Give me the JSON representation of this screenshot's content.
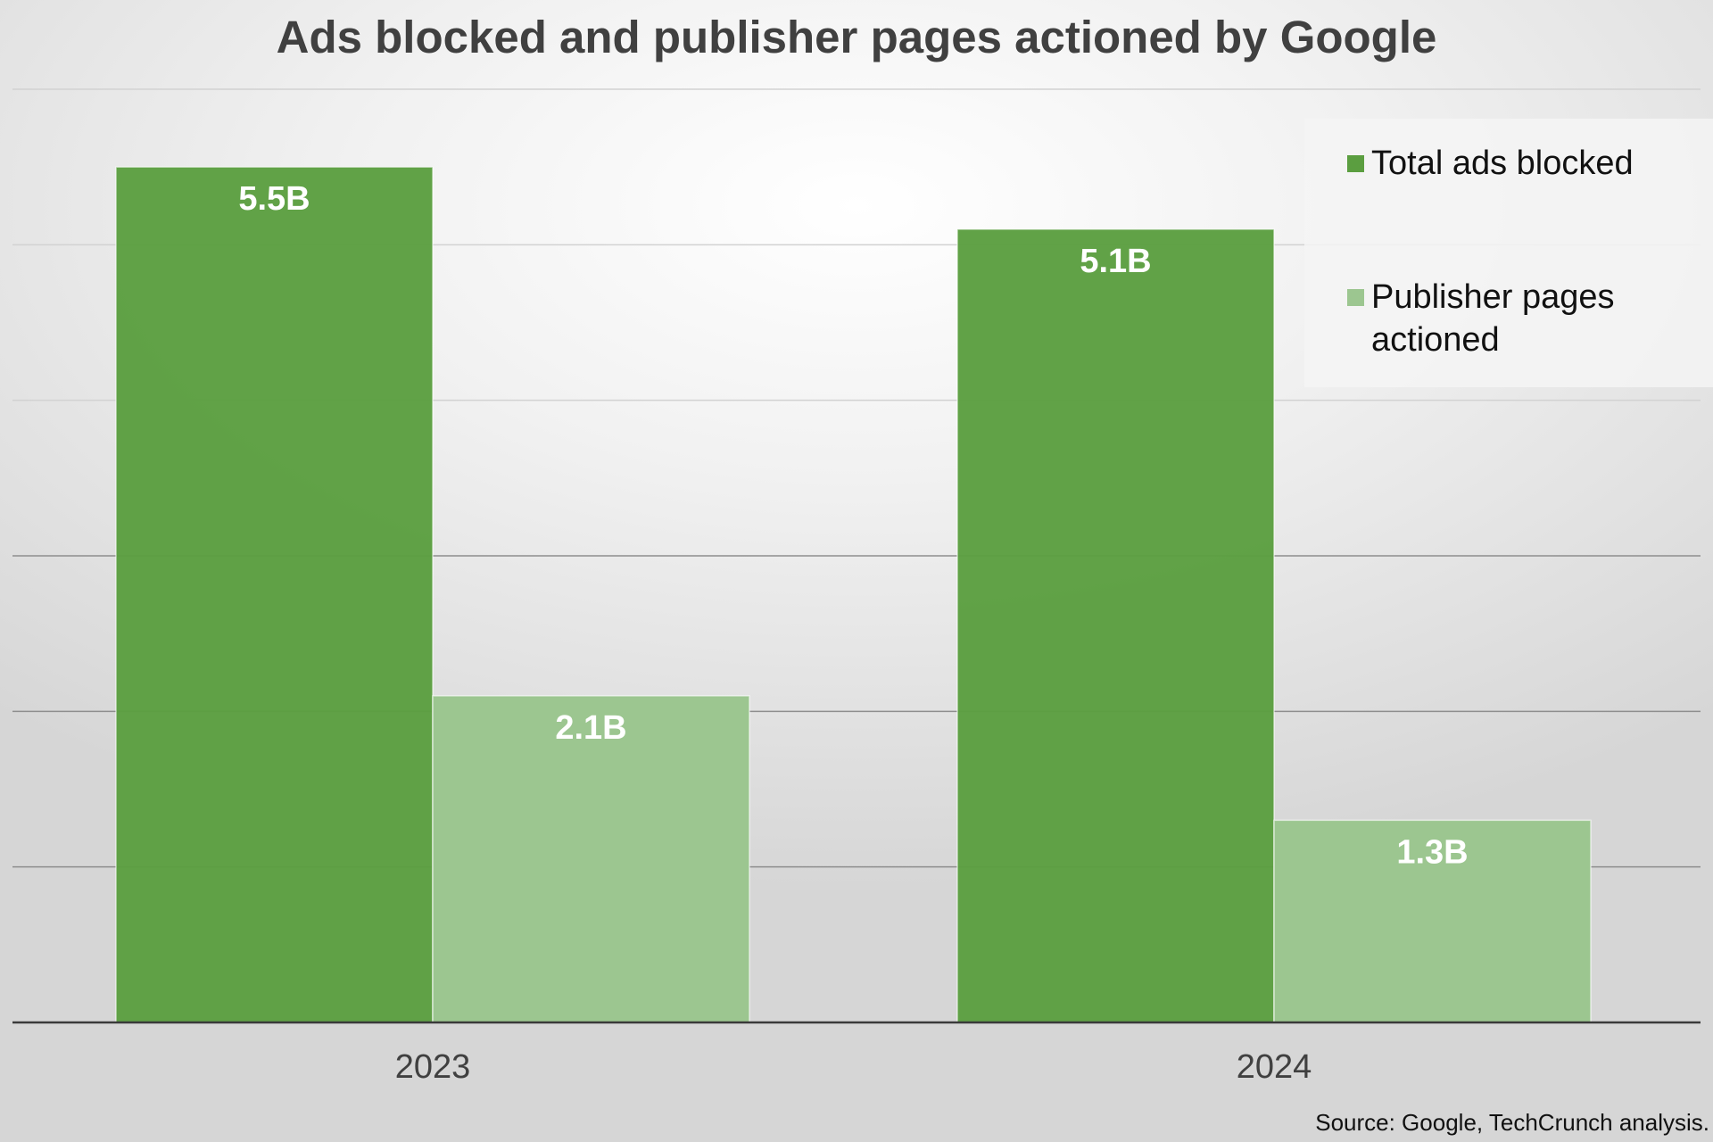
{
  "chart_data": {
    "type": "bar",
    "title": "Ads blocked and publisher pages actioned by Google",
    "categories": [
      "2023",
      "2024"
    ],
    "series": [
      {
        "name": "Total ads blocked",
        "values": [
          5.5,
          5.1
        ],
        "labels": [
          "5.5B",
          "5.1B"
        ],
        "color": "#5b9e40"
      },
      {
        "name": "Publisher pages actioned",
        "values": [
          2.1,
          1.3
        ],
        "labels": [
          "2.1B",
          "1.3B"
        ],
        "color": "#9cc690"
      }
    ],
    "xlabel": "",
    "ylabel": "",
    "ylim": [
      0,
      6.0
    ],
    "grid": true,
    "legend_position": "top-right",
    "source": "Source: Google, TechCrunch analysis."
  }
}
